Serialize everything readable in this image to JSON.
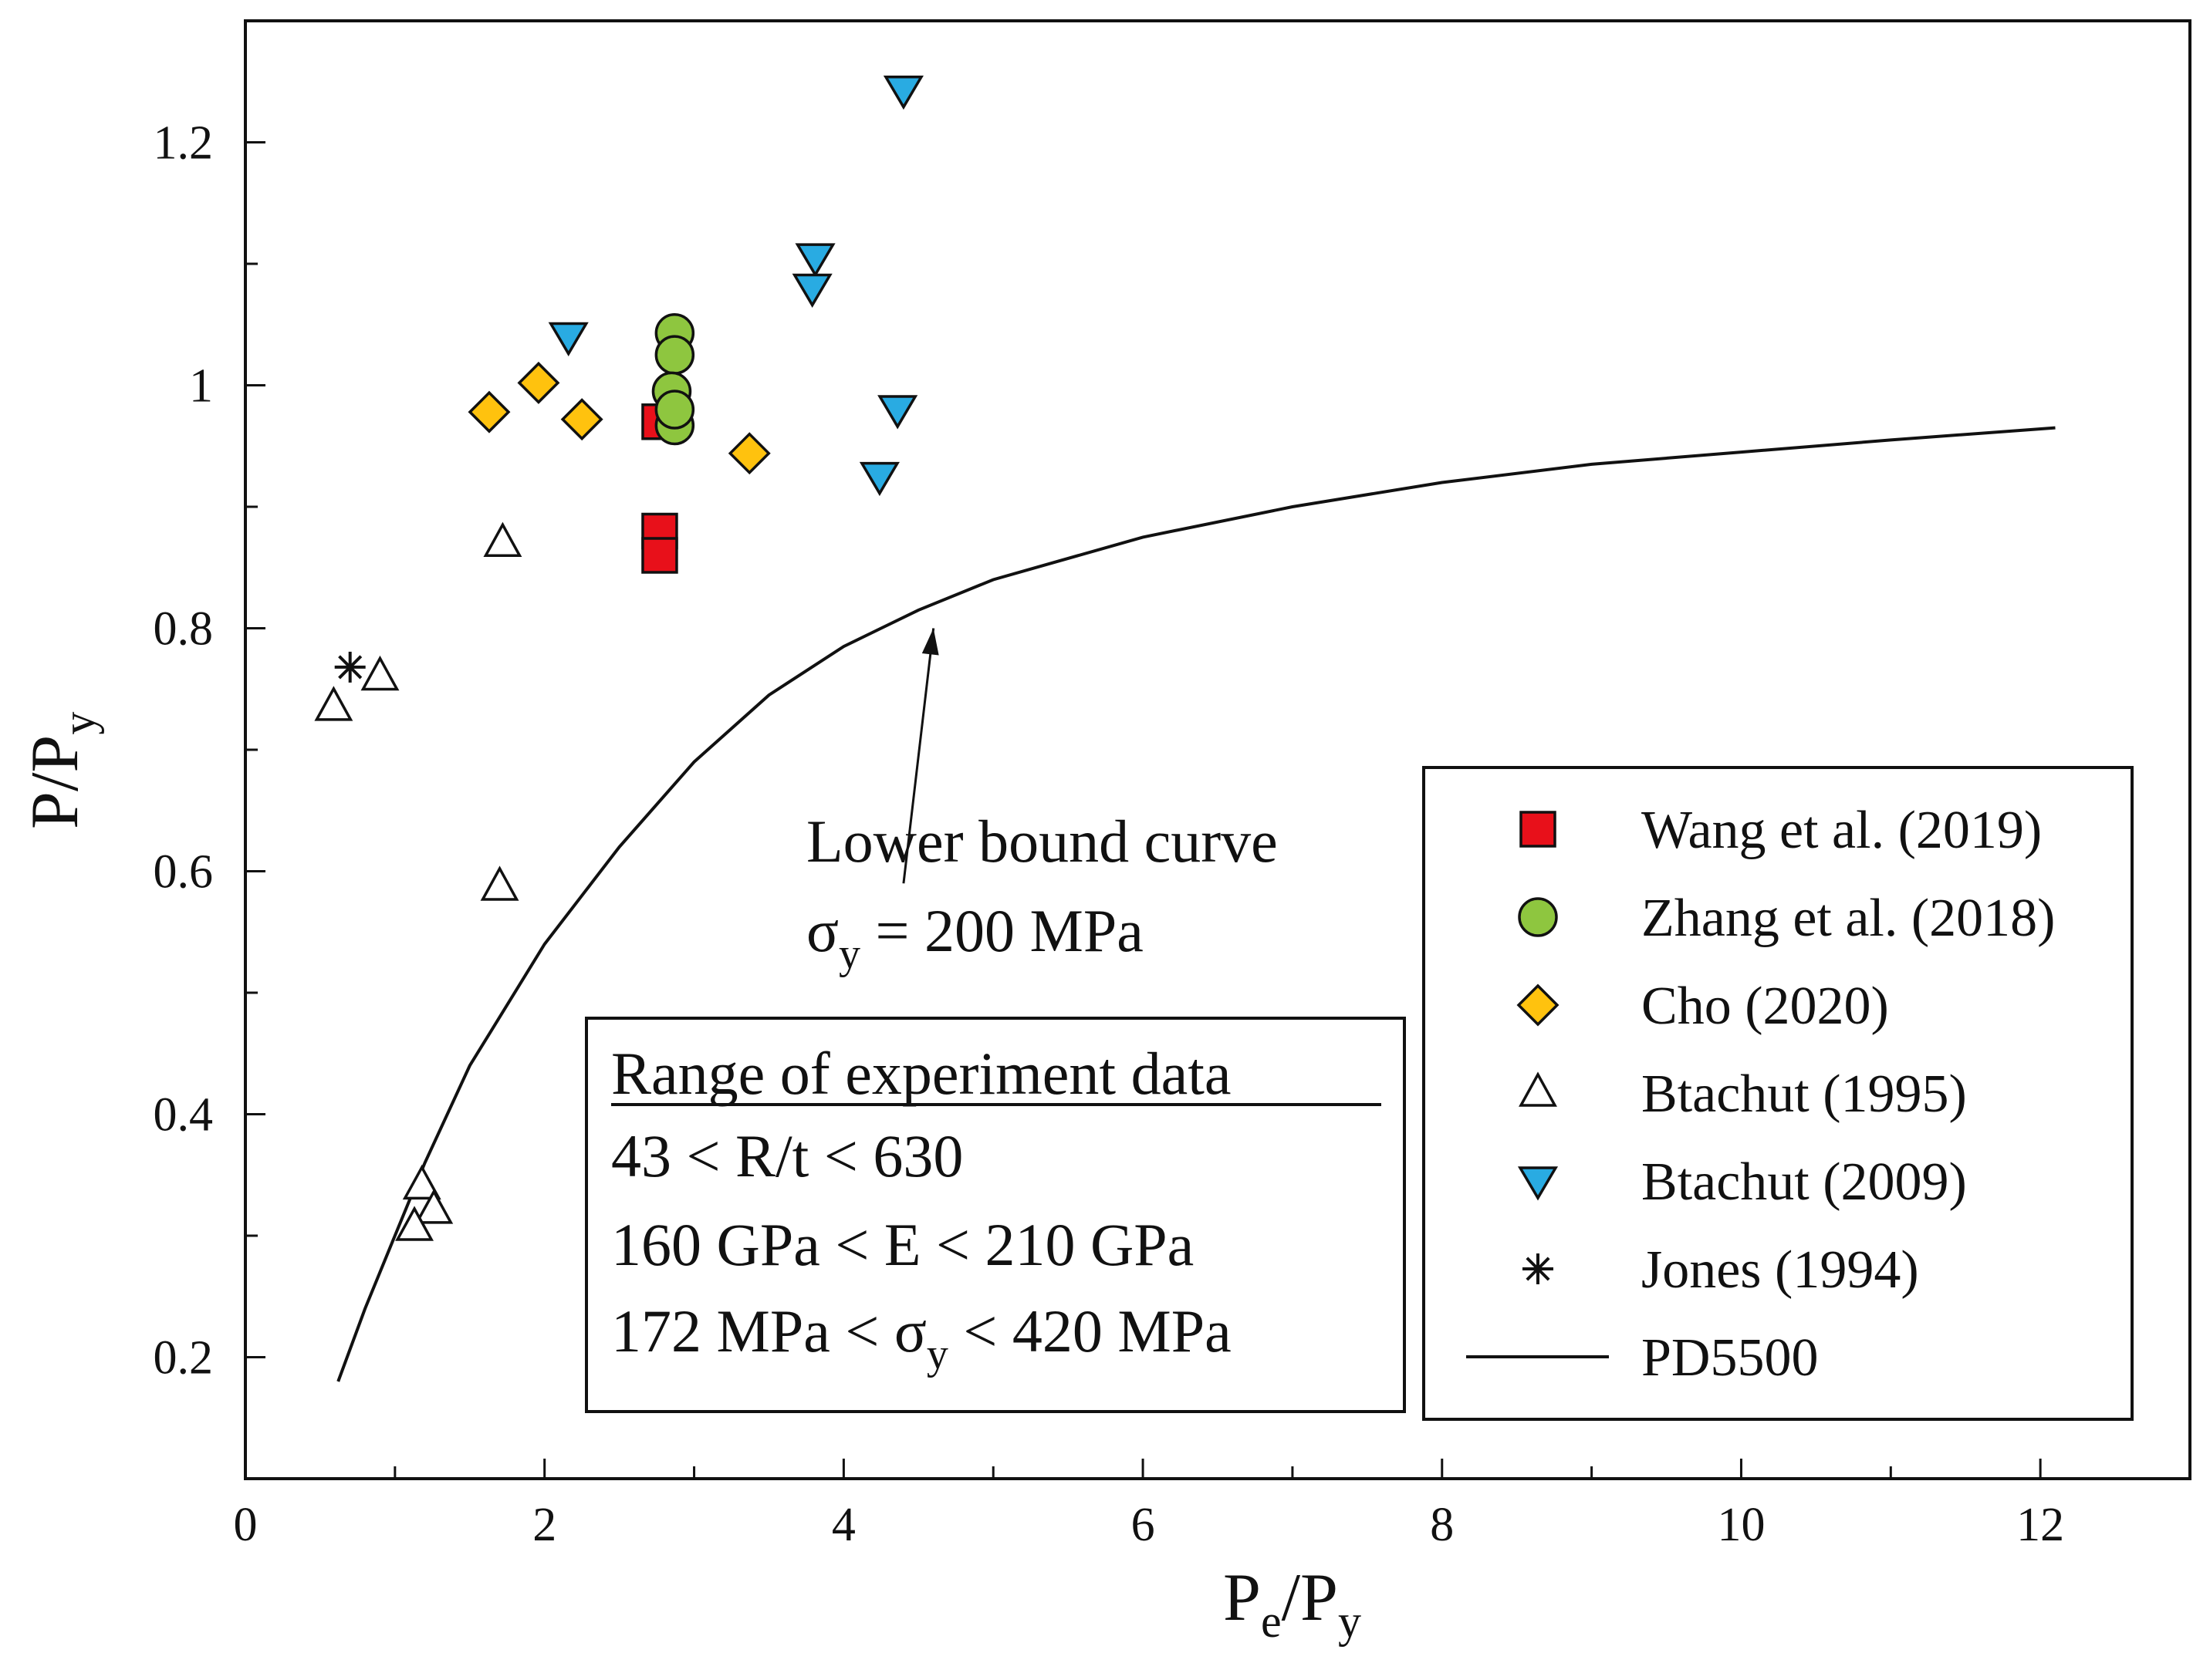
{
  "chart_data": {
    "type": "scatter",
    "xlabel": {
      "main": "P",
      "sub1": "e",
      "slash": "/P",
      "sub2": "y"
    },
    "ylabel": {
      "main": "P/P",
      "sub": "y"
    },
    "xlim": [
      0,
      13
    ],
    "ylim": [
      0.1,
      1.3
    ],
    "x_ticks": [
      0,
      2,
      4,
      6,
      8,
      10,
      12
    ],
    "x_tick_labels": [
      "0",
      "2",
      "4",
      "6",
      "8",
      "10",
      "12"
    ],
    "y_ticks": [
      0.2,
      0.4,
      0.6,
      0.8,
      1.0,
      1.2
    ],
    "y_tick_labels": [
      "0.2",
      "0.4",
      "0.6",
      "0.8",
      "1",
      "1.2"
    ],
    "grid": false,
    "legend_position": "bottom-right",
    "series": [
      {
        "name": "Wang et al. (2019)",
        "marker": "square",
        "color": "#e8101a",
        "points": [
          [
            2.77,
            0.97
          ],
          [
            2.77,
            0.88
          ],
          [
            2.77,
            0.86
          ]
        ]
      },
      {
        "name": "Zhang et al. (2018)",
        "marker": "circle",
        "color": "#8ec63f",
        "points": [
          [
            2.87,
            1.043
          ],
          [
            2.87,
            1.025
          ],
          [
            2.85,
            0.995
          ],
          [
            2.87,
            0.967
          ],
          [
            2.87,
            0.98
          ]
        ]
      },
      {
        "name": "Cho (2020)",
        "marker": "diamond",
        "color": "#ffc20e",
        "points": [
          [
            1.63,
            0.978
          ],
          [
            1.96,
            1.002
          ],
          [
            2.25,
            0.972
          ],
          [
            3.37,
            0.944
          ]
        ]
      },
      {
        "name": "Btachut (1995)",
        "marker": "triangle-up",
        "color": "#ffffff",
        "points": [
          [
            0.59,
            0.735
          ],
          [
            0.9,
            0.76
          ],
          [
            1.72,
            0.87
          ],
          [
            1.7,
            0.587
          ],
          [
            1.18,
            0.341
          ],
          [
            1.26,
            0.321
          ],
          [
            1.13,
            0.307
          ]
        ]
      },
      {
        "name": "Btachut (2009)",
        "marker": "triangle-down",
        "color": "#29abe2",
        "points": [
          [
            4.4,
            1.243
          ],
          [
            3.81,
            1.105
          ],
          [
            3.79,
            1.08
          ],
          [
            2.16,
            1.04
          ],
          [
            4.36,
            0.98
          ],
          [
            4.24,
            0.925
          ]
        ]
      },
      {
        "name": "Jones (1994)",
        "marker": "asterisk",
        "color": "#111111",
        "points": [
          [
            0.7,
            0.768
          ]
        ]
      },
      {
        "name": "PD5500",
        "marker": "line",
        "color": "#111111",
        "points": [
          [
            0.62,
            0.18
          ],
          [
            0.8,
            0.24
          ],
          [
            1.0,
            0.3
          ],
          [
            1.2,
            0.36
          ],
          [
            1.5,
            0.44
          ],
          [
            2.0,
            0.54
          ],
          [
            2.5,
            0.62
          ],
          [
            3.0,
            0.69
          ],
          [
            3.5,
            0.745
          ],
          [
            4.0,
            0.785
          ],
          [
            4.5,
            0.815
          ],
          [
            5.0,
            0.84
          ],
          [
            6.0,
            0.875
          ],
          [
            7.0,
            0.9
          ],
          [
            8.0,
            0.92
          ],
          [
            9.0,
            0.935
          ],
          [
            10.0,
            0.945
          ],
          [
            11.0,
            0.955
          ],
          [
            12.1,
            0.965
          ]
        ]
      }
    ],
    "annotations": {
      "curve_label_line1": "Lower bound curve",
      "curve_label_line2_sigma": "σ",
      "curve_label_line2_sub": "y",
      "curve_label_line2_rest": " = 200 MPa",
      "arrow_from": [
        4.4,
        0.59
      ],
      "arrow_to": [
        4.6,
        0.8
      ],
      "range_box": {
        "title": "Range of experiment data",
        "line1": "43 < R/t < 630",
        "line2": "160 GPa < E < 210 GPa",
        "line3_pre": "172 MPa < σ",
        "line3_sub": "y",
        "line3_post": " < 420 MPa"
      }
    }
  }
}
